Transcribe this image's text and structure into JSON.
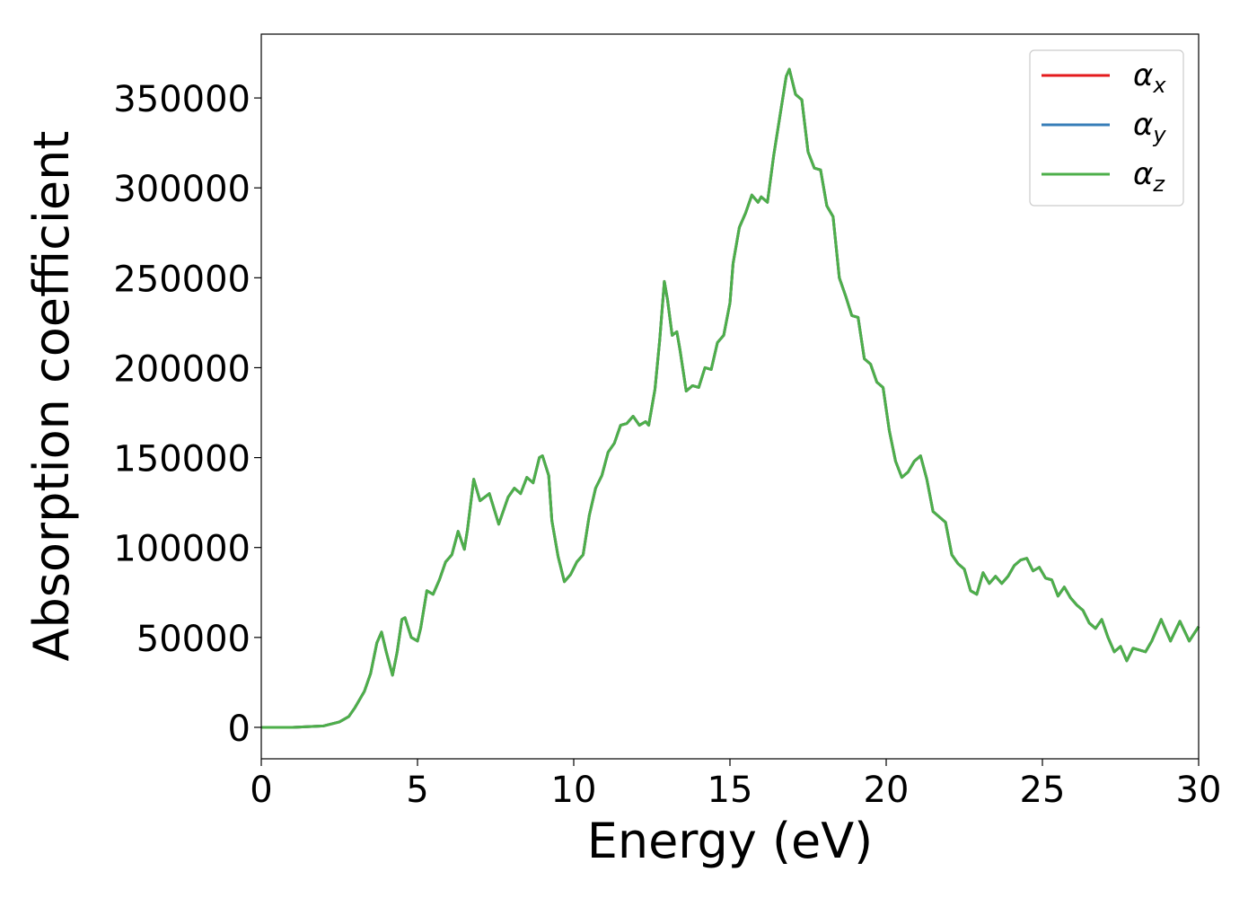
{
  "chart_data": {
    "type": "line",
    "xlabel": "Energy (eV)",
    "ylabel": "Absorption coefficient",
    "xlim": [
      0,
      30
    ],
    "ylim": [
      -17500,
      385500
    ],
    "xticks": [
      0,
      5,
      10,
      15,
      20,
      25,
      30
    ],
    "yticks": [
      0,
      50000,
      100000,
      150000,
      200000,
      250000,
      300000,
      350000
    ],
    "legend": "upper right",
    "grid": false,
    "x": [
      0,
      1,
      2,
      2.5,
      2.8,
      3.0,
      3.3,
      3.5,
      3.7,
      3.85,
      4.0,
      4.2,
      4.35,
      4.5,
      4.6,
      4.8,
      5.0,
      5.1,
      5.3,
      5.5,
      5.7,
      5.9,
      6.1,
      6.3,
      6.5,
      6.6,
      6.8,
      7.0,
      7.3,
      7.6,
      7.9,
      8.1,
      8.3,
      8.5,
      8.7,
      8.9,
      9.0,
      9.2,
      9.3,
      9.5,
      9.7,
      9.9,
      10.1,
      10.3,
      10.5,
      10.7,
      10.9,
      11.1,
      11.3,
      11.5,
      11.7,
      11.9,
      12.1,
      12.3,
      12.4,
      12.6,
      12.75,
      12.9,
      13.0,
      13.15,
      13.3,
      13.4,
      13.6,
      13.8,
      14.0,
      14.2,
      14.4,
      14.6,
      14.8,
      15.0,
      15.1,
      15.3,
      15.5,
      15.7,
      15.9,
      16.0,
      16.2,
      16.4,
      16.6,
      16.8,
      16.9,
      17.1,
      17.3,
      17.5,
      17.7,
      17.9,
      18.1,
      18.3,
      18.5,
      18.7,
      18.9,
      19.1,
      19.3,
      19.5,
      19.7,
      19.9,
      20.1,
      20.3,
      20.5,
      20.7,
      20.9,
      21.1,
      21.3,
      21.5,
      21.7,
      21.9,
      22.1,
      22.3,
      22.5,
      22.7,
      22.9,
      23.1,
      23.3,
      23.5,
      23.7,
      23.9,
      24.1,
      24.3,
      24.5,
      24.7,
      24.9,
      25.1,
      25.3,
      25.5,
      25.7,
      25.9,
      26.1,
      26.3,
      26.5,
      26.7,
      26.9,
      27.1,
      27.3,
      27.5,
      27.7,
      27.9,
      28.1,
      28.3,
      28.5,
      28.8,
      29.1,
      29.4,
      29.7,
      30.0
    ],
    "series": [
      {
        "name": "αx",
        "color": "#e41a1c",
        "values": [
          0,
          0,
          800,
          3000,
          6000,
          11000,
          20000,
          30000,
          47000,
          53000,
          42000,
          29000,
          42000,
          60000,
          61000,
          50000,
          48000,
          55000,
          76000,
          74000,
          82000,
          92000,
          96000,
          109000,
          99000,
          110000,
          138000,
          126000,
          130000,
          113000,
          128000,
          133000,
          130000,
          139000,
          136000,
          150000,
          151000,
          140000,
          115000,
          95000,
          81000,
          85000,
          92000,
          96000,
          118000,
          133000,
          140000,
          153000,
          158000,
          168000,
          169000,
          173000,
          168000,
          170000,
          168000,
          188000,
          215000,
          248000,
          238000,
          218000,
          220000,
          210000,
          187000,
          190000,
          189000,
          200000,
          199000,
          214000,
          218000,
          236000,
          258000,
          278000,
          286000,
          296000,
          292000,
          295000,
          292000,
          318000,
          340000,
          362000,
          366000,
          352000,
          349000,
          320000,
          311000,
          310000,
          290000,
          284000,
          250000,
          240000,
          229000,
          228000,
          205000,
          202000,
          192000,
          189000,
          165000,
          148000,
          139000,
          142000,
          148000,
          151000,
          138000,
          120000,
          117000,
          114000,
          96000,
          91000,
          88000,
          76000,
          74000,
          86000,
          80000,
          84000,
          80000,
          84000,
          90000,
          93000,
          94000,
          87000,
          89000,
          83000,
          82000,
          73000,
          78000,
          72000,
          68000,
          65000,
          58000,
          55000,
          60000,
          50000,
          42000,
          45000,
          37000,
          44000,
          43000,
          42000,
          48000,
          60000,
          48000,
          59000,
          48000,
          56000
        ]
      },
      {
        "name": "αy",
        "color": "#377eb8",
        "values": [
          0,
          0,
          800,
          3000,
          6000,
          11000,
          20000,
          30000,
          47000,
          53000,
          42000,
          29000,
          42000,
          60000,
          61000,
          50000,
          48000,
          55000,
          76000,
          74000,
          82000,
          92000,
          96000,
          109000,
          99000,
          110000,
          138000,
          126000,
          130000,
          113000,
          128000,
          133000,
          130000,
          139000,
          136000,
          150000,
          151000,
          140000,
          115000,
          95000,
          81000,
          85000,
          92000,
          96000,
          118000,
          133000,
          140000,
          153000,
          158000,
          168000,
          169000,
          173000,
          168000,
          170000,
          168000,
          188000,
          215000,
          248000,
          238000,
          218000,
          220000,
          210000,
          187000,
          190000,
          189000,
          200000,
          199000,
          214000,
          218000,
          236000,
          258000,
          278000,
          286000,
          296000,
          292000,
          295000,
          292000,
          318000,
          340000,
          362000,
          366000,
          352000,
          349000,
          320000,
          311000,
          310000,
          290000,
          284000,
          250000,
          240000,
          229000,
          228000,
          205000,
          202000,
          192000,
          189000,
          165000,
          148000,
          139000,
          142000,
          148000,
          151000,
          138000,
          120000,
          117000,
          114000,
          96000,
          91000,
          88000,
          76000,
          74000,
          86000,
          80000,
          84000,
          80000,
          84000,
          90000,
          93000,
          94000,
          87000,
          89000,
          83000,
          82000,
          73000,
          78000,
          72000,
          68000,
          65000,
          58000,
          55000,
          60000,
          50000,
          42000,
          45000,
          37000,
          44000,
          43000,
          42000,
          48000,
          60000,
          48000,
          59000,
          48000,
          56000
        ]
      },
      {
        "name": "αz",
        "color": "#4daf4a",
        "values": [
          0,
          0,
          800,
          3000,
          6000,
          11000,
          20000,
          30000,
          47000,
          53000,
          42000,
          29000,
          42000,
          60000,
          61000,
          50000,
          48000,
          55000,
          76000,
          74000,
          82000,
          92000,
          96000,
          109000,
          99000,
          110000,
          138000,
          126000,
          130000,
          113000,
          128000,
          133000,
          130000,
          139000,
          136000,
          150000,
          151000,
          140000,
          115000,
          95000,
          81000,
          85000,
          92000,
          96000,
          118000,
          133000,
          140000,
          153000,
          158000,
          168000,
          169000,
          173000,
          168000,
          170000,
          168000,
          188000,
          215000,
          248000,
          238000,
          218000,
          220000,
          210000,
          187000,
          190000,
          189000,
          200000,
          199000,
          214000,
          218000,
          236000,
          258000,
          278000,
          286000,
          296000,
          292000,
          295000,
          292000,
          318000,
          340000,
          362000,
          366000,
          352000,
          349000,
          320000,
          311000,
          310000,
          290000,
          284000,
          250000,
          240000,
          229000,
          228000,
          205000,
          202000,
          192000,
          189000,
          165000,
          148000,
          139000,
          142000,
          148000,
          151000,
          138000,
          120000,
          117000,
          114000,
          96000,
          91000,
          88000,
          76000,
          74000,
          86000,
          80000,
          84000,
          80000,
          84000,
          90000,
          93000,
          94000,
          87000,
          89000,
          83000,
          82000,
          73000,
          78000,
          72000,
          68000,
          65000,
          58000,
          55000,
          60000,
          50000,
          42000,
          45000,
          37000,
          44000,
          43000,
          42000,
          48000,
          60000,
          48000,
          59000,
          48000,
          56000
        ]
      }
    ]
  }
}
